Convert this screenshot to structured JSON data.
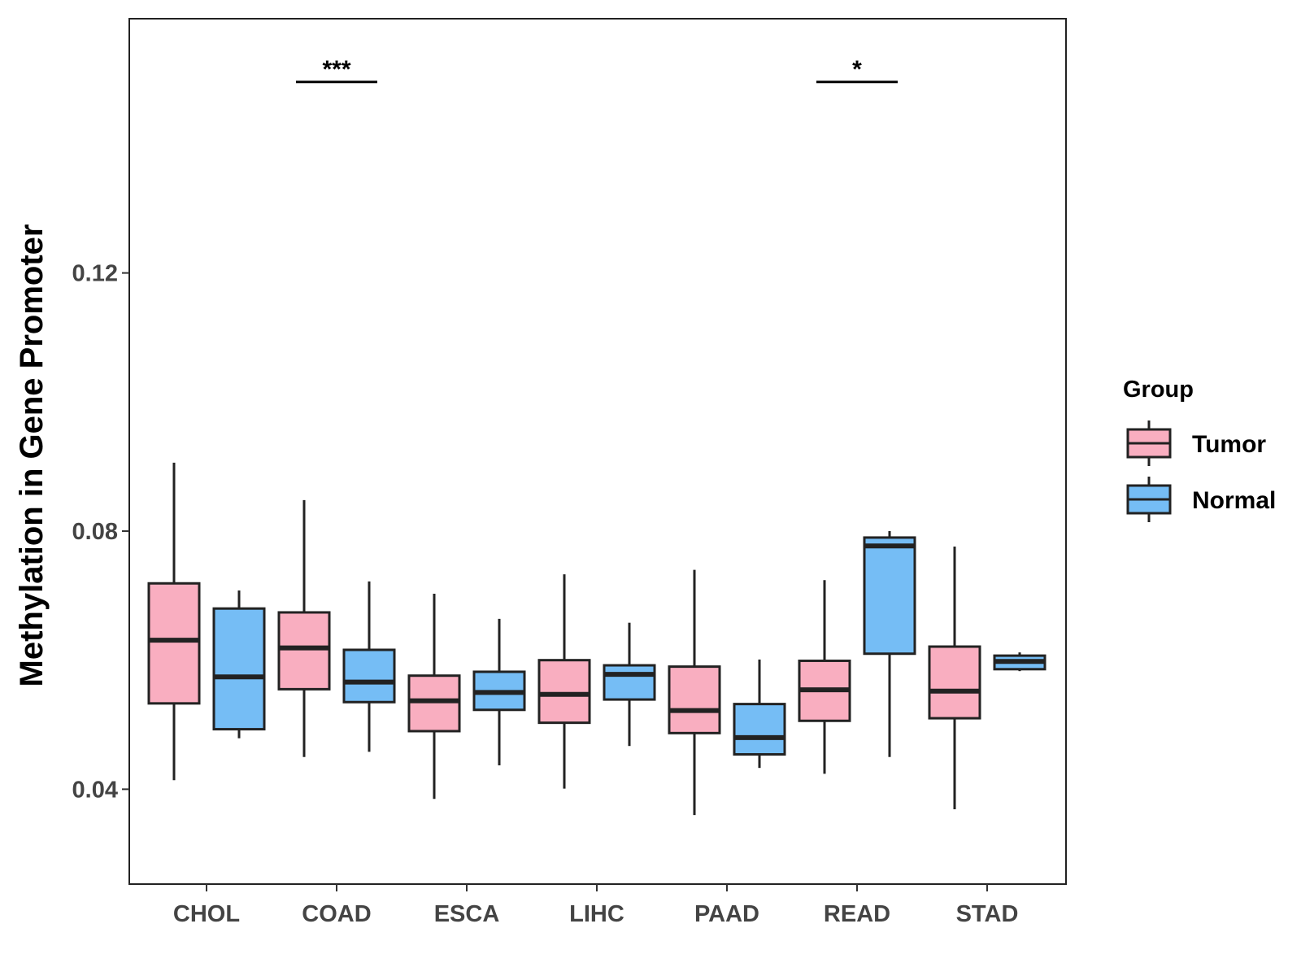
{
  "chart_data": {
    "type": "boxplot",
    "title": "",
    "xlabel": "",
    "ylabel": "Methylation in Gene Promoter",
    "ylim": [
      0.0253,
      0.1594
    ],
    "yticks": [
      0.04,
      0.08,
      0.12
    ],
    "ytick_labels": [
      "0.04",
      "0.08",
      "0.12"
    ],
    "categories": [
      "CHOL",
      "COAD",
      "ESCA",
      "LIHC",
      "PAAD",
      "READ",
      "STAD"
    ],
    "legend": {
      "title": "Group",
      "position": "right",
      "entries": [
        {
          "name": "Tumor",
          "color": "#F9AEC0"
        },
        {
          "name": "Normal",
          "color": "#75BDF5"
        }
      ]
    },
    "series": [
      {
        "name": "Tumor",
        "color": "#F9AEC0",
        "boxes": [
          {
            "category": "CHOL",
            "min": 0.0414,
            "q1": 0.0533,
            "median": 0.0631,
            "q3": 0.0719,
            "max": 0.0906
          },
          {
            "category": "COAD",
            "min": 0.045,
            "q1": 0.0555,
            "median": 0.0619,
            "q3": 0.0674,
            "max": 0.0848
          },
          {
            "category": "ESCA",
            "min": 0.0385,
            "q1": 0.049,
            "median": 0.0537,
            "q3": 0.0576,
            "max": 0.0703
          },
          {
            "category": "LIHC",
            "min": 0.0401,
            "q1": 0.0503,
            "median": 0.0547,
            "q3": 0.06,
            "max": 0.0733
          },
          {
            "category": "PAAD",
            "min": 0.036,
            "q1": 0.0487,
            "median": 0.0522,
            "q3": 0.059,
            "max": 0.074
          },
          {
            "category": "READ",
            "min": 0.0424,
            "q1": 0.0506,
            "median": 0.0554,
            "q3": 0.0599,
            "max": 0.0724
          },
          {
            "category": "STAD",
            "min": 0.0369,
            "q1": 0.051,
            "median": 0.0552,
            "q3": 0.0621,
            "max": 0.0776
          }
        ]
      },
      {
        "name": "Normal",
        "color": "#75BDF5",
        "boxes": [
          {
            "category": "CHOL",
            "min": 0.0479,
            "q1": 0.0493,
            "median": 0.0574,
            "q3": 0.068,
            "max": 0.0708
          },
          {
            "category": "COAD",
            "min": 0.0458,
            "q1": 0.0535,
            "median": 0.0566,
            "q3": 0.0616,
            "max": 0.0722
          },
          {
            "category": "ESCA",
            "min": 0.0437,
            "q1": 0.0523,
            "median": 0.055,
            "q3": 0.0582,
            "max": 0.0664
          },
          {
            "category": "LIHC",
            "min": 0.0467,
            "q1": 0.0539,
            "median": 0.0578,
            "q3": 0.0592,
            "max": 0.0658
          },
          {
            "category": "PAAD",
            "min": 0.0433,
            "q1": 0.0454,
            "median": 0.048,
            "q3": 0.0532,
            "max": 0.0601
          },
          {
            "category": "READ",
            "min": 0.045,
            "q1": 0.061,
            "median": 0.0777,
            "q3": 0.079,
            "max": 0.08
          },
          {
            "category": "STAD",
            "min": 0.0583,
            "q1": 0.0586,
            "median": 0.0598,
            "q3": 0.0607,
            "max": 0.0612
          }
        ]
      }
    ],
    "annotations": [
      {
        "category": "COAD",
        "label": "***",
        "y": 0.1496
      },
      {
        "category": "READ",
        "label": "*",
        "y": 0.1496
      }
    ]
  }
}
